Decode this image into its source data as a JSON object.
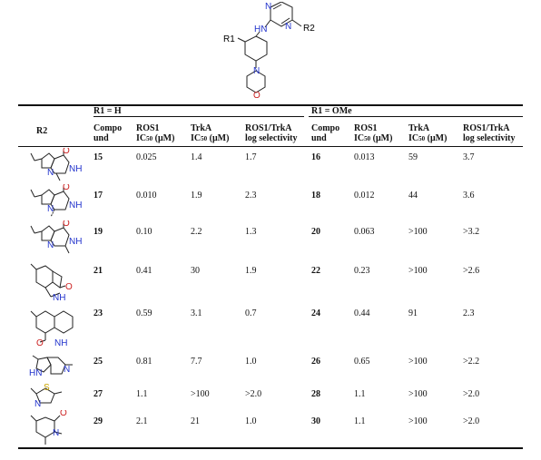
{
  "scaffold": {
    "r1": "R1",
    "r2": "R2",
    "hn": "HN",
    "n_atom": "N",
    "o_atom": "O"
  },
  "header": {
    "r2": "R2",
    "group_h": "R1 = H",
    "group_ome": "R1 = OMe",
    "compound_1": "Compo",
    "compound_2": "und",
    "ros1_1": "ROS1",
    "ros1_2_prefix": "IC",
    "ros1_2_sub": "50",
    "ros1_2_unit": " (μM)",
    "trka_1": "TrkA",
    "trka_2_prefix": "IC",
    "trka_2_sub": "50",
    "trka_2_unit": " (μM)",
    "sel_1": "ROS1/TrkA",
    "sel_2": "log selectivity"
  },
  "rows": [
    {
      "c1": "15",
      "ros1": "0.025",
      "trka": "1.4",
      "sel": "1.7",
      "c2": "16",
      "ros1b": "0.013",
      "trkab": "59",
      "selb": "3.7"
    },
    {
      "c1": "17",
      "ros1": "0.010",
      "trka": "1.9",
      "sel": "2.3",
      "c2": "18",
      "ros1b": "0.012",
      "trkab": "44",
      "selb": "3.6"
    },
    {
      "c1": "19",
      "ros1": "0.10",
      "trka": "2.2",
      "sel": "1.3",
      "c2": "20",
      "ros1b": "0.063",
      "trkab": ">100",
      "selb": ">3.2"
    },
    {
      "c1": "21",
      "ros1": "0.41",
      "trka": "30",
      "sel": "1.9",
      "c2": "22",
      "ros1b": "0.23",
      "trkab": ">100",
      "selb": ">2.6"
    },
    {
      "c1": "23",
      "ros1": "0.59",
      "trka": "3.1",
      "sel": "0.7",
      "c2": "24",
      "ros1b": "0.44",
      "trkab": "91",
      "selb": "2.3"
    },
    {
      "c1": "25",
      "ros1": "0.81",
      "trka": "7.7",
      "sel": "1.0",
      "c2": "26",
      "ros1b": "0.65",
      "trkab": ">100",
      "selb": ">2.2"
    },
    {
      "c1": "27",
      "ros1": "1.1",
      "trka": ">100",
      "sel": ">2.0",
      "c2": "28",
      "ros1b": "1.1",
      "trkab": ">100",
      "selb": ">2.0"
    },
    {
      "c1": "29",
      "ros1": "2.1",
      "trka": "21",
      "sel": "1.0",
      "c2": "30",
      "ros1b": "1.1",
      "trkab": ">100",
      "selb": ">2.0"
    }
  ],
  "structure_atoms": {
    "o": "O",
    "nh": "NH",
    "n": "N",
    "hn": "HN",
    "s": "S"
  }
}
